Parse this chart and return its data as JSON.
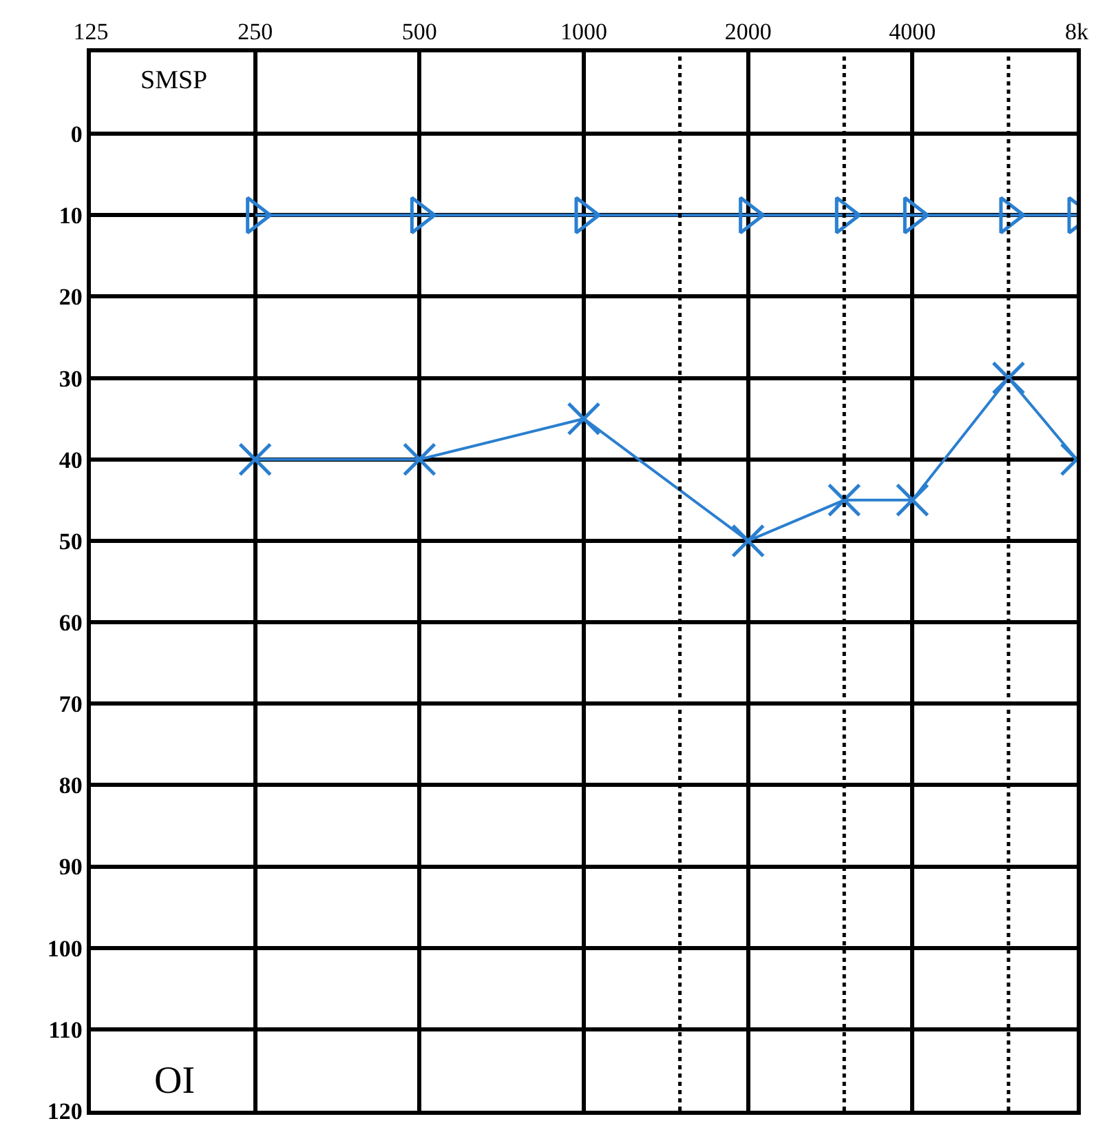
{
  "chart_data": {
    "type": "line",
    "x": [
      250,
      500,
      1000,
      2000,
      3000,
      4000,
      6000,
      8000
    ],
    "series": [
      {
        "color": "#2a7fd0",
        "marker": "triangle",
        "values": [
          10,
          10,
          10,
          10,
          10,
          10,
          10,
          10
        ]
      },
      {
        "color": "#2a7fd0",
        "marker": "cross",
        "values": [
          40,
          40,
          35,
          50,
          45,
          45,
          30,
          40
        ]
      }
    ],
    "log": "x",
    "xlim": [
      125,
      8000
    ],
    "xticks": [
      125,
      250,
      500,
      1000,
      2000,
      4000,
      {
        "value": 8000,
        "label": "8k"
      }
    ],
    "ylim": [
      120,
      -10
    ],
    "yticks": [
      0,
      10,
      20,
      30,
      40,
      50,
      60,
      70,
      80,
      90,
      100,
      110,
      120
    ],
    "grid": true,
    "line_style": "solid",
    "ref_lines": [
      {
        "axis": "x",
        "value": 1500,
        "color": "#000000",
        "line_style": "dotted"
      },
      {
        "axis": "x",
        "value": 3000,
        "color": "#000000",
        "line_style": "dotted"
      },
      {
        "axis": "x",
        "value": 6000,
        "color": "#000000",
        "line_style": "dotted"
      }
    ],
    "annotations": [
      "SMSP",
      "OI"
    ]
  }
}
